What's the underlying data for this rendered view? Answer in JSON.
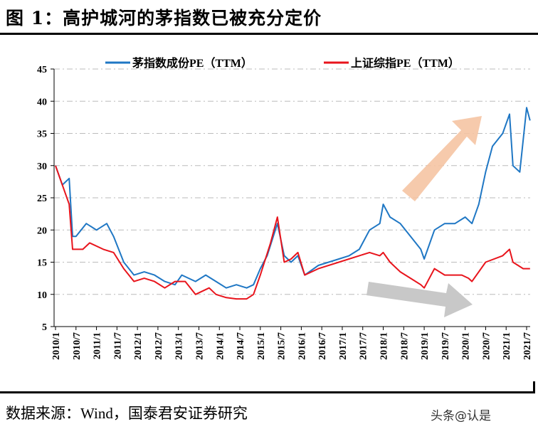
{
  "title": "图 1：高护城河的茅指数已被充分定价",
  "source": "数据来源：Wind，国泰君安证券研究",
  "watermark": "头条@认是",
  "chart_data": {
    "type": "line",
    "title": "",
    "ylim": [
      5,
      45
    ],
    "yticks": [
      5,
      10,
      15,
      20,
      25,
      30,
      35,
      40,
      45
    ],
    "xticks": [
      "2010/1",
      "2010/7",
      "2011/1",
      "2011/7",
      "2012/1",
      "2012/7",
      "2013/1",
      "2013/7",
      "2014/1",
      "2014/7",
      "2015/1",
      "2015/7",
      "2016/1",
      "2016/7",
      "2017/1",
      "2017/7",
      "2018/1",
      "2018/7",
      "2019/1",
      "2019/7",
      "2020/1",
      "2020/7",
      "2021/1",
      "2021/7"
    ],
    "grid": "horizontal dashed",
    "legend": "top",
    "series": [
      {
        "name": "茅指数成份PE（TTM）",
        "color": "#1f77c4",
        "x": [
          "2010-01",
          "2010-03",
          "2010-05",
          "2010-06",
          "2010-07",
          "2010-10",
          "2011-01",
          "2011-04",
          "2011-06",
          "2011-09",
          "2011-12",
          "2012-03",
          "2012-06",
          "2012-09",
          "2012-12",
          "2013-02",
          "2013-06",
          "2013-09",
          "2013-12",
          "2014-03",
          "2014-06",
          "2014-09",
          "2014-11",
          "2015-01",
          "2015-03",
          "2015-06",
          "2015-08",
          "2015-10",
          "2015-12",
          "2016-02",
          "2016-06",
          "2016-12",
          "2017-03",
          "2017-06",
          "2017-09",
          "2017-12",
          "2018-01",
          "2018-03",
          "2018-06",
          "2018-09",
          "2018-12",
          "2019-01",
          "2019-04",
          "2019-07",
          "2019-10",
          "2020-01",
          "2020-03",
          "2020-05",
          "2020-07",
          "2020-09",
          "2020-12",
          "2021-02",
          "2021-03",
          "2021-05",
          "2021-07",
          "2021-08"
        ],
        "values": [
          30,
          27,
          28,
          19,
          19,
          21,
          20,
          21,
          19,
          15,
          13,
          13.5,
          13,
          12,
          11.5,
          13,
          12,
          13,
          12,
          11,
          11.5,
          11,
          11.5,
          14,
          16,
          21,
          16,
          15,
          16,
          13,
          14.5,
          15.5,
          16,
          17,
          20,
          21,
          24,
          22,
          21,
          19,
          17,
          15.5,
          20,
          21,
          21,
          22,
          21,
          24,
          29,
          33,
          35,
          38,
          30,
          29,
          39,
          37
        ]
      },
      {
        "name": "上证综指PE（TTM）",
        "color": "#e8141c",
        "x": [
          "2010-01",
          "2010-03",
          "2010-05",
          "2010-06",
          "2010-09",
          "2010-11",
          "2011-03",
          "2011-06",
          "2011-09",
          "2011-12",
          "2012-03",
          "2012-06",
          "2012-09",
          "2012-12",
          "2013-03",
          "2013-06",
          "2013-10",
          "2013-12",
          "2014-03",
          "2014-06",
          "2014-09",
          "2014-11",
          "2015-01",
          "2015-04",
          "2015-06",
          "2015-08",
          "2015-10",
          "2015-12",
          "2016-02",
          "2016-06",
          "2016-12",
          "2017-06",
          "2017-09",
          "2017-12",
          "2018-01",
          "2018-03",
          "2018-06",
          "2018-09",
          "2018-12",
          "2019-01",
          "2019-04",
          "2019-07",
          "2019-12",
          "2020-02",
          "2020-03",
          "2020-07",
          "2020-12",
          "2021-02",
          "2021-03",
          "2021-06",
          "2021-08"
        ],
        "values": [
          30,
          27,
          24,
          17,
          17,
          18,
          17,
          16.5,
          14,
          12,
          12.5,
          12,
          11,
          12,
          12,
          10,
          11,
          10,
          9.5,
          9.3,
          9.3,
          10,
          13,
          18,
          22,
          15,
          15.5,
          16.5,
          13,
          14,
          15,
          16,
          16.5,
          16,
          16.5,
          15,
          13.5,
          12.5,
          11.5,
          11,
          14,
          13,
          13,
          12.5,
          12,
          15,
          16,
          17,
          15,
          14,
          14
        ]
      }
    ]
  }
}
